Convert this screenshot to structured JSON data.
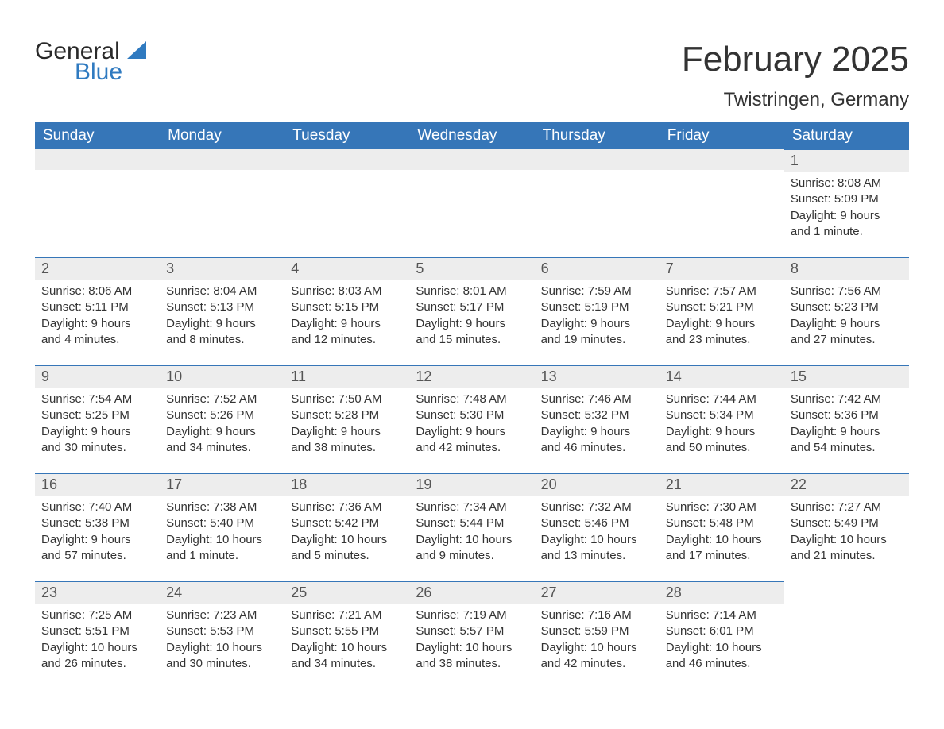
{
  "logo": {
    "word1": "General",
    "word2": "Blue",
    "shape_color": "#2f7ac0",
    "text_color": "#2a2a2a"
  },
  "title": "February 2025",
  "location": "Twistringen, Germany",
  "colors": {
    "header_bg": "#3676b8",
    "header_text": "#ffffff",
    "strip_bg": "#ededed",
    "strip_border": "#3676b8",
    "body_text": "#333333",
    "background": "#ffffff"
  },
  "days_of_week": [
    "Sunday",
    "Monday",
    "Tuesday",
    "Wednesday",
    "Thursday",
    "Friday",
    "Saturday"
  ],
  "weeks": [
    [
      {
        "day": null
      },
      {
        "day": null
      },
      {
        "day": null
      },
      {
        "day": null
      },
      {
        "day": null
      },
      {
        "day": null
      },
      {
        "day": "1",
        "sunrise": "Sunrise: 8:08 AM",
        "sunset": "Sunset: 5:09 PM",
        "daylight1": "Daylight: 9 hours",
        "daylight2": "and 1 minute."
      }
    ],
    [
      {
        "day": "2",
        "sunrise": "Sunrise: 8:06 AM",
        "sunset": "Sunset: 5:11 PM",
        "daylight1": "Daylight: 9 hours",
        "daylight2": "and 4 minutes."
      },
      {
        "day": "3",
        "sunrise": "Sunrise: 8:04 AM",
        "sunset": "Sunset: 5:13 PM",
        "daylight1": "Daylight: 9 hours",
        "daylight2": "and 8 minutes."
      },
      {
        "day": "4",
        "sunrise": "Sunrise: 8:03 AM",
        "sunset": "Sunset: 5:15 PM",
        "daylight1": "Daylight: 9 hours",
        "daylight2": "and 12 minutes."
      },
      {
        "day": "5",
        "sunrise": "Sunrise: 8:01 AM",
        "sunset": "Sunset: 5:17 PM",
        "daylight1": "Daylight: 9 hours",
        "daylight2": "and 15 minutes."
      },
      {
        "day": "6",
        "sunrise": "Sunrise: 7:59 AM",
        "sunset": "Sunset: 5:19 PM",
        "daylight1": "Daylight: 9 hours",
        "daylight2": "and 19 minutes."
      },
      {
        "day": "7",
        "sunrise": "Sunrise: 7:57 AM",
        "sunset": "Sunset: 5:21 PM",
        "daylight1": "Daylight: 9 hours",
        "daylight2": "and 23 minutes."
      },
      {
        "day": "8",
        "sunrise": "Sunrise: 7:56 AM",
        "sunset": "Sunset: 5:23 PM",
        "daylight1": "Daylight: 9 hours",
        "daylight2": "and 27 minutes."
      }
    ],
    [
      {
        "day": "9",
        "sunrise": "Sunrise: 7:54 AM",
        "sunset": "Sunset: 5:25 PM",
        "daylight1": "Daylight: 9 hours",
        "daylight2": "and 30 minutes."
      },
      {
        "day": "10",
        "sunrise": "Sunrise: 7:52 AM",
        "sunset": "Sunset: 5:26 PM",
        "daylight1": "Daylight: 9 hours",
        "daylight2": "and 34 minutes."
      },
      {
        "day": "11",
        "sunrise": "Sunrise: 7:50 AM",
        "sunset": "Sunset: 5:28 PM",
        "daylight1": "Daylight: 9 hours",
        "daylight2": "and 38 minutes."
      },
      {
        "day": "12",
        "sunrise": "Sunrise: 7:48 AM",
        "sunset": "Sunset: 5:30 PM",
        "daylight1": "Daylight: 9 hours",
        "daylight2": "and 42 minutes."
      },
      {
        "day": "13",
        "sunrise": "Sunrise: 7:46 AM",
        "sunset": "Sunset: 5:32 PM",
        "daylight1": "Daylight: 9 hours",
        "daylight2": "and 46 minutes."
      },
      {
        "day": "14",
        "sunrise": "Sunrise: 7:44 AM",
        "sunset": "Sunset: 5:34 PM",
        "daylight1": "Daylight: 9 hours",
        "daylight2": "and 50 minutes."
      },
      {
        "day": "15",
        "sunrise": "Sunrise: 7:42 AM",
        "sunset": "Sunset: 5:36 PM",
        "daylight1": "Daylight: 9 hours",
        "daylight2": "and 54 minutes."
      }
    ],
    [
      {
        "day": "16",
        "sunrise": "Sunrise: 7:40 AM",
        "sunset": "Sunset: 5:38 PM",
        "daylight1": "Daylight: 9 hours",
        "daylight2": "and 57 minutes."
      },
      {
        "day": "17",
        "sunrise": "Sunrise: 7:38 AM",
        "sunset": "Sunset: 5:40 PM",
        "daylight1": "Daylight: 10 hours",
        "daylight2": "and 1 minute."
      },
      {
        "day": "18",
        "sunrise": "Sunrise: 7:36 AM",
        "sunset": "Sunset: 5:42 PM",
        "daylight1": "Daylight: 10 hours",
        "daylight2": "and 5 minutes."
      },
      {
        "day": "19",
        "sunrise": "Sunrise: 7:34 AM",
        "sunset": "Sunset: 5:44 PM",
        "daylight1": "Daylight: 10 hours",
        "daylight2": "and 9 minutes."
      },
      {
        "day": "20",
        "sunrise": "Sunrise: 7:32 AM",
        "sunset": "Sunset: 5:46 PM",
        "daylight1": "Daylight: 10 hours",
        "daylight2": "and 13 minutes."
      },
      {
        "day": "21",
        "sunrise": "Sunrise: 7:30 AM",
        "sunset": "Sunset: 5:48 PM",
        "daylight1": "Daylight: 10 hours",
        "daylight2": "and 17 minutes."
      },
      {
        "day": "22",
        "sunrise": "Sunrise: 7:27 AM",
        "sunset": "Sunset: 5:49 PM",
        "daylight1": "Daylight: 10 hours",
        "daylight2": "and 21 minutes."
      }
    ],
    [
      {
        "day": "23",
        "sunrise": "Sunrise: 7:25 AM",
        "sunset": "Sunset: 5:51 PM",
        "daylight1": "Daylight: 10 hours",
        "daylight2": "and 26 minutes."
      },
      {
        "day": "24",
        "sunrise": "Sunrise: 7:23 AM",
        "sunset": "Sunset: 5:53 PM",
        "daylight1": "Daylight: 10 hours",
        "daylight2": "and 30 minutes."
      },
      {
        "day": "25",
        "sunrise": "Sunrise: 7:21 AM",
        "sunset": "Sunset: 5:55 PM",
        "daylight1": "Daylight: 10 hours",
        "daylight2": "and 34 minutes."
      },
      {
        "day": "26",
        "sunrise": "Sunrise: 7:19 AM",
        "sunset": "Sunset: 5:57 PM",
        "daylight1": "Daylight: 10 hours",
        "daylight2": "and 38 minutes."
      },
      {
        "day": "27",
        "sunrise": "Sunrise: 7:16 AM",
        "sunset": "Sunset: 5:59 PM",
        "daylight1": "Daylight: 10 hours",
        "daylight2": "and 42 minutes."
      },
      {
        "day": "28",
        "sunrise": "Sunrise: 7:14 AM",
        "sunset": "Sunset: 6:01 PM",
        "daylight1": "Daylight: 10 hours",
        "daylight2": "and 46 minutes."
      },
      {
        "day": null
      }
    ]
  ]
}
